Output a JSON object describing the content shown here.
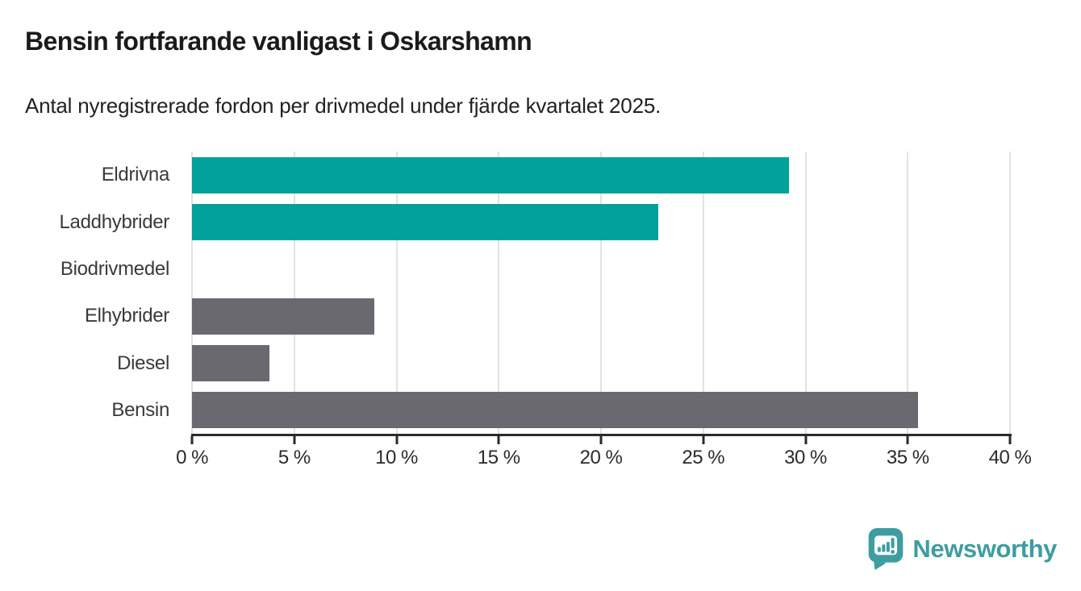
{
  "header": {
    "title": "Bensin fortfarande vanligast i Oskarshamn",
    "subtitle": "Antal nyregistrerade fordon per drivmedel under fjärde kvartalet 2025."
  },
  "chart_data": {
    "type": "bar",
    "orientation": "horizontal",
    "title": "Bensin fortfarande vanligast i Oskarshamn",
    "subtitle": "Antal nyregistrerade fordon per drivmedel under fjärde kvartalet 2025.",
    "categories": [
      "Eldrivna",
      "Laddhybrider",
      "Biodrivmedel",
      "Elhybrider",
      "Diesel",
      "Bensin"
    ],
    "values": [
      29.2,
      22.8,
      0,
      8.9,
      3.8,
      35.5
    ],
    "unit": "%",
    "bar_colors": [
      "#00a29b",
      "#00a29b",
      "#6a6970",
      "#6a6970",
      "#6a6970",
      "#6a6970"
    ],
    "xlabel": "",
    "ylabel": "",
    "xlim": [
      0,
      40
    ],
    "x_ticks": [
      0,
      5,
      10,
      15,
      20,
      25,
      30,
      35,
      40
    ],
    "x_tick_labels": [
      "0 %",
      "5 %",
      "10 %",
      "15 %",
      "20 %",
      "25 %",
      "30 %",
      "35 %",
      "40 %"
    ],
    "grid": "vertical",
    "legend": "none"
  },
  "colors": {
    "accent_teal": "#00a29b",
    "neutral_gray": "#6a6970",
    "gridline": "#e2e2e2",
    "axis": "#2b2b2b",
    "brand_teal": "#3d9da1"
  },
  "footer": {
    "brand": "Newsworthy"
  }
}
